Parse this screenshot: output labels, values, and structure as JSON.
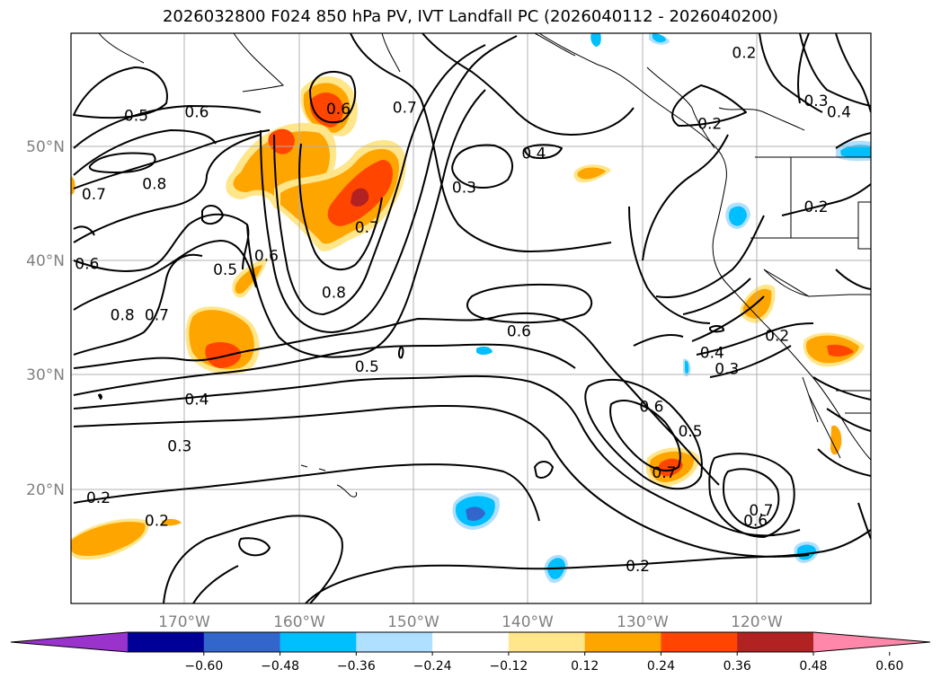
{
  "title": "2026032800 F024 850 hPa PV, IVT Landfall PC (2026040112 - 2026040200)",
  "map": {
    "lon_ticks": [
      "170°W",
      "160°W",
      "150°W",
      "140°W",
      "130°W",
      "120°W"
    ],
    "lat_ticks": [
      "50°N",
      "40°N",
      "30°N",
      "20°N"
    ]
  },
  "contour_labels": [
    {
      "text": "0.5",
      "lon": -174.3,
      "lat": 52.8
    },
    {
      "text": "0.6",
      "lon": -169.0,
      "lat": 53.1
    },
    {
      "text": "0.6",
      "lon": -156.6,
      "lat": 53.4
    },
    {
      "text": "0.7",
      "lon": -150.8,
      "lat": 53.5
    },
    {
      "text": "0.8",
      "lon": -172.7,
      "lat": 46.8
    },
    {
      "text": "0.7",
      "lon": -178.0,
      "lat": 45.9
    },
    {
      "text": "0.7",
      "lon": -154.1,
      "lat": 43.0
    },
    {
      "text": "0.3",
      "lon": -145.6,
      "lat": 46.5
    },
    {
      "text": "0.4",
      "lon": -139.5,
      "lat": 49.5
    },
    {
      "text": "0.6",
      "lon": -178.6,
      "lat": 39.8
    },
    {
      "text": "0.5",
      "lon": -166.5,
      "lat": 39.3
    },
    {
      "text": "0.6",
      "lon": -162.9,
      "lat": 40.5
    },
    {
      "text": "0.8",
      "lon": -157.0,
      "lat": 37.3
    },
    {
      "text": "0.8",
      "lon": -175.5,
      "lat": 35.3
    },
    {
      "text": "0.7",
      "lon": -172.5,
      "lat": 35.3
    },
    {
      "text": "0.6",
      "lon": -140.8,
      "lat": 33.9
    },
    {
      "text": "0.5",
      "lon": -154.1,
      "lat": 30.8
    },
    {
      "text": "0.4",
      "lon": -169.0,
      "lat": 27.9
    },
    {
      "text": "0.3",
      "lon": -170.5,
      "lat": 23.8
    },
    {
      "text": "0.2",
      "lon": -177.6,
      "lat": 19.3
    },
    {
      "text": "0.2",
      "lon": -172.5,
      "lat": 17.3
    },
    {
      "text": "0.2",
      "lon": -130.4,
      "lat": 13.3
    },
    {
      "text": "0.7",
      "lon": -128.1,
      "lat": 21.5
    },
    {
      "text": "0.6",
      "lon": -129.2,
      "lat": 27.3
    },
    {
      "text": "0.5",
      "lon": -125.8,
      "lat": 25.1
    },
    {
      "text": "0.7",
      "lon": -119.6,
      "lat": 18.2
    },
    {
      "text": "0.6",
      "lon": -120.1,
      "lat": 17.3
    },
    {
      "text": "0.4",
      "lon": -123.9,
      "lat": 32.0
    },
    {
      "text": "0.3",
      "lon": -122.6,
      "lat": 30.6
    },
    {
      "text": "0.2",
      "lon": -118.2,
      "lat": 33.5
    },
    {
      "text": "0.2",
      "lon": -124.1,
      "lat": 52.1
    },
    {
      "text": "0.2",
      "lon": -121.1,
      "lat": 58.3
    },
    {
      "text": "0.3",
      "lon": -114.8,
      "lat": 54.1
    },
    {
      "text": "0.4",
      "lon": -112.8,
      "lat": 53.1
    },
    {
      "text": "0.2",
      "lon": -114.8,
      "lat": 44.8
    }
  ],
  "colorbar": {
    "colors": [
      "#9933cc",
      "#000099",
      "#3366cc",
      "#00bfff",
      "#b0e0ff",
      "#ffffff",
      "#ffe68a",
      "#ffa500",
      "#ff4500",
      "#b22222",
      "#ff88aa"
    ],
    "tick_labels": [
      "−0.60",
      "−0.48",
      "−0.36",
      "−0.24",
      "−0.12",
      "0.12",
      "0.24",
      "0.36",
      "0.48",
      "0.60"
    ]
  }
}
